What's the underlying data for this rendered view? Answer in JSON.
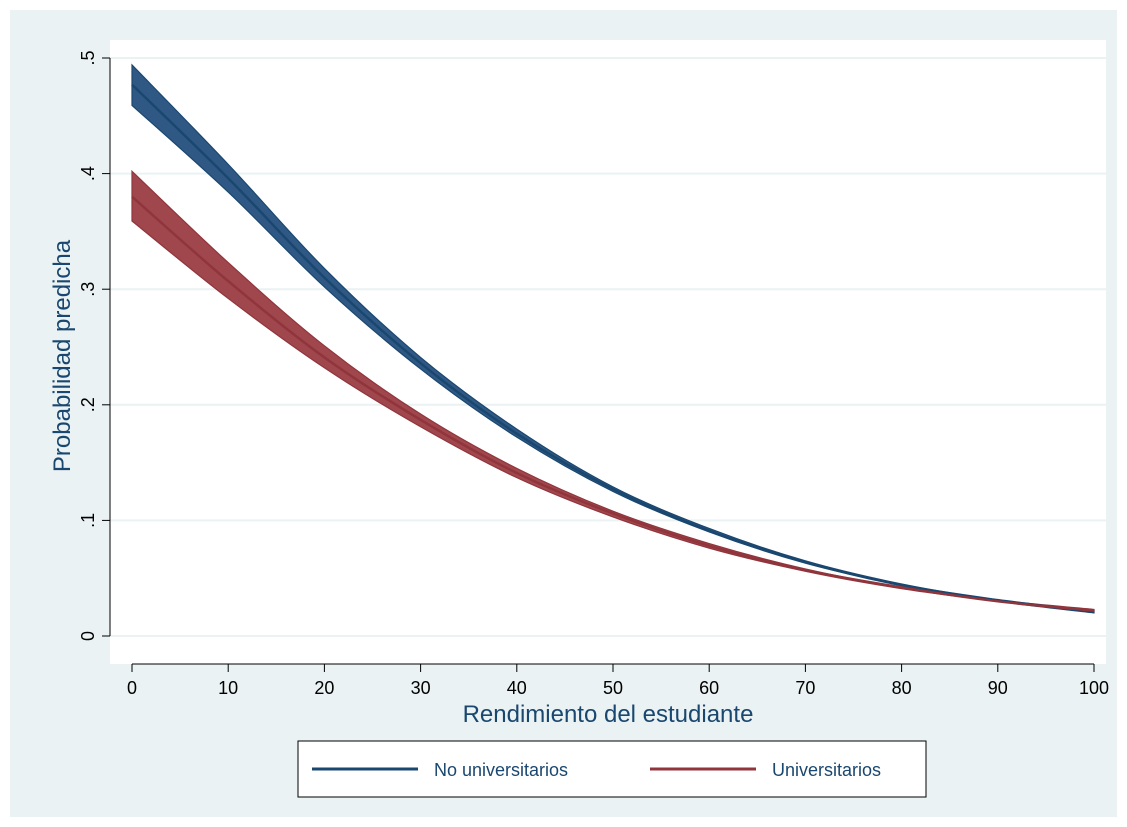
{
  "chart_data": {
    "type": "line",
    "title": "",
    "xlabel": "Rendimiento del estudiante",
    "ylabel": "Probabilidad predicha",
    "xlim": [
      0,
      100
    ],
    "ylim": [
      0,
      0.5
    ],
    "x_ticks": [
      0,
      10,
      20,
      30,
      40,
      50,
      60,
      70,
      80,
      90,
      100
    ],
    "x_tick_labels": [
      "0",
      "10",
      "20",
      "30",
      "40",
      "50",
      "60",
      "70",
      "80",
      "90",
      "100"
    ],
    "y_ticks": [
      0,
      0.1,
      0.2,
      0.3,
      0.4,
      0.5
    ],
    "y_tick_labels": [
      "0",
      ".1",
      ".2",
      ".3",
      ".4",
      ".5"
    ],
    "grid": true,
    "legend_position": "bottom",
    "x": [
      0,
      10,
      20,
      30,
      40,
      50,
      60,
      70,
      80,
      90,
      100
    ],
    "series": [
      {
        "name": "No universitarios",
        "color": "#1a476f",
        "band_color": "#2f5984",
        "values": [
          0.477,
          0.396,
          0.31,
          0.236,
          0.175,
          0.127,
          0.091,
          0.064,
          0.044,
          0.031,
          0.021
        ],
        "lower": [
          0.459,
          0.384,
          0.302,
          0.231,
          0.172,
          0.125,
          0.09,
          0.063,
          0.044,
          0.03,
          0.02
        ],
        "upper": [
          0.494,
          0.408,
          0.318,
          0.241,
          0.179,
          0.129,
          0.093,
          0.065,
          0.045,
          0.031,
          0.022
        ]
      },
      {
        "name": "Universitarios",
        "color": "#90353b",
        "band_color": "#a0464d",
        "values": [
          0.38,
          0.307,
          0.241,
          0.187,
          0.141,
          0.106,
          0.078,
          0.057,
          0.042,
          0.03,
          0.022
        ],
        "lower": [
          0.359,
          0.292,
          0.232,
          0.181,
          0.137,
          0.103,
          0.076,
          0.056,
          0.041,
          0.03,
          0.021
        ],
        "upper": [
          0.402,
          0.323,
          0.251,
          0.192,
          0.145,
          0.108,
          0.08,
          0.058,
          0.042,
          0.031,
          0.023
        ]
      }
    ]
  }
}
